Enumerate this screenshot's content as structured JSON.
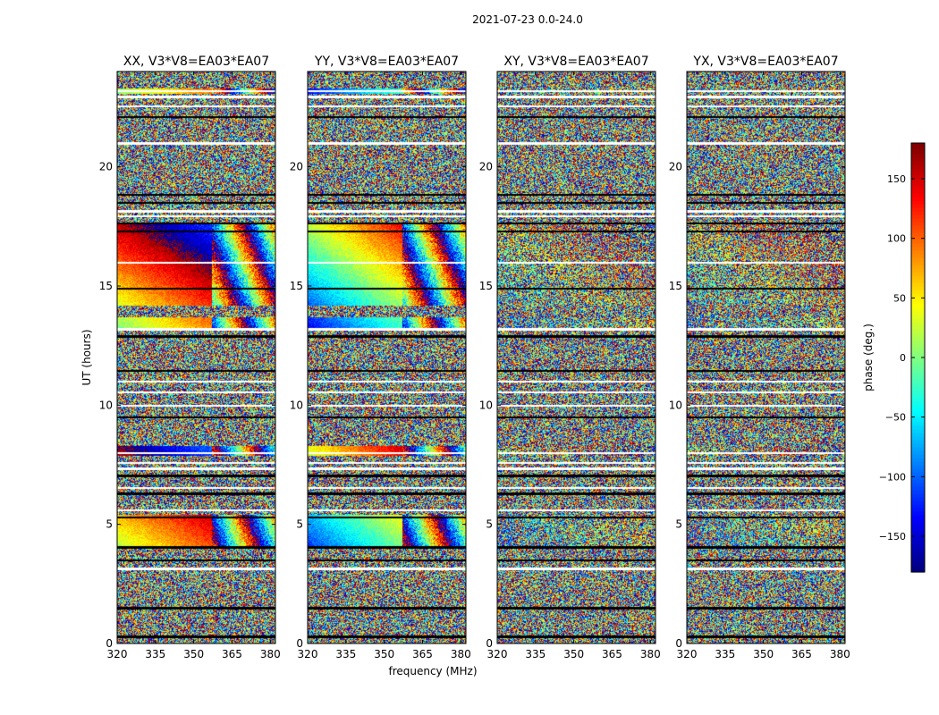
{
  "suptitle": "2021-07-23 0.0-24.0",
  "chart_data": {
    "type": "heatmap",
    "title": "2021-07-23 0.0-24.0",
    "xlabel": "frequency (MHz)",
    "ylabel": "UT (hours)",
    "xlim": [
      320,
      382
    ],
    "ylim": [
      0,
      24
    ],
    "x_ticks": [
      320,
      335,
      350,
      365,
      380
    ],
    "y_ticks": [
      0,
      5,
      10,
      15,
      20
    ],
    "colormap": "jet",
    "colorbar": {
      "label": "phase (deg.)",
      "range": [
        -180,
        180
      ],
      "ticks": [
        -150,
        -100,
        -50,
        0,
        50,
        100,
        150
      ],
      "tick_labels": [
        "−150",
        "−100",
        "−50",
        "0",
        "50",
        "100",
        "150"
      ]
    },
    "panels": [
      {
        "title": "XX, V3*V8=EA03*EA07",
        "polarization": "XX"
      },
      {
        "title": "YY, V3*V8=EA03*EA07",
        "polarization": "YY"
      },
      {
        "title": "XY, V3*V8=EA03*EA07",
        "polarization": "XY"
      },
      {
        "title": "YX, V3*V8=EA03*EA07",
        "polarization": "YX"
      }
    ],
    "flagged_rows_hours": [
      0.3,
      1.5,
      3.15,
      3.5,
      4.05,
      5.3,
      5.6,
      6.3,
      6.55,
      7.05,
      7.35,
      7.6,
      8.0,
      9.5,
      10.0,
      10.55,
      11.0,
      11.45,
      12.9,
      13.2,
      14.9,
      16.0,
      17.3,
      17.65,
      17.95,
      18.15,
      18.5,
      18.85,
      21.0,
      22.1,
      22.55,
      22.95,
      23.2
    ],
    "coherent_bands_hours": [
      [
        4.1,
        5.4
      ],
      [
        7.9,
        8.3
      ],
      [
        13.2,
        13.7
      ],
      [
        14.2,
        17.6
      ],
      [
        23.1,
        23.3
      ]
    ]
  }
}
